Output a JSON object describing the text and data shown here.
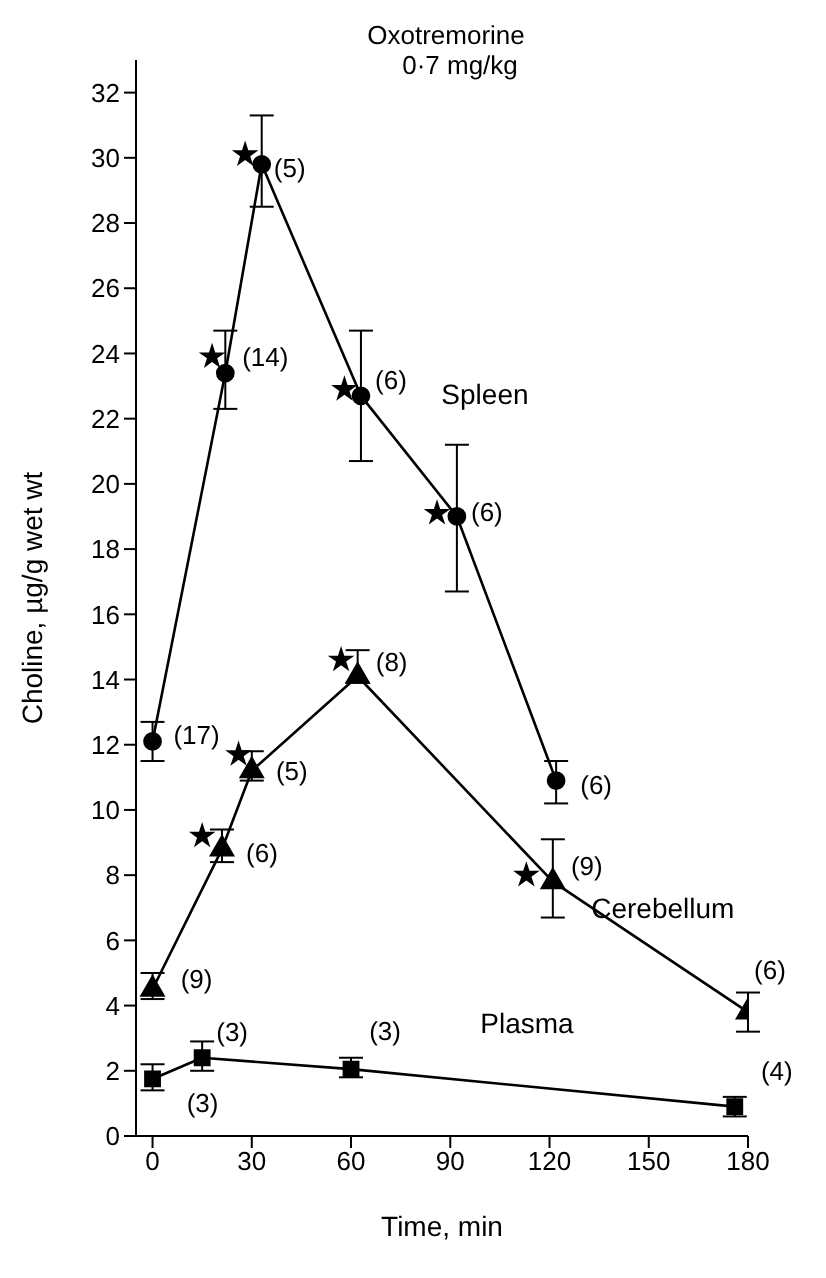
{
  "chart_data": {
    "type": "line",
    "title": "Oxotremorine",
    "subtitle": "0·7 mg/kg",
    "xlabel": "Time, min",
    "ylabel": "Choline, µg/g wet wt",
    "xlim": [
      -5,
      180
    ],
    "xticks": [
      0,
      30,
      60,
      90,
      120,
      150,
      180
    ],
    "ylim": [
      0,
      33
    ],
    "yticks": [
      0,
      2,
      4,
      6,
      8,
      10,
      12,
      14,
      16,
      18,
      20,
      22,
      24,
      26,
      28,
      30,
      32
    ],
    "grid": false,
    "legend": false,
    "line_style": "solid",
    "series": [
      {
        "name": "Spleen",
        "marker": "circle",
        "color": "#000000",
        "x": [
          0,
          22,
          33,
          63,
          92,
          122
        ],
        "values": [
          12.1,
          23.4,
          29.8,
          22.7,
          19.0,
          10.9
        ],
        "errors": [
          [
            11.5,
            12.7
          ],
          [
            22.3,
            24.7
          ],
          [
            28.5,
            31.3
          ],
          [
            20.7,
            24.7
          ],
          [
            16.7,
            21.2
          ],
          [
            10.2,
            11.5
          ]
        ]
      },
      {
        "name": "Cerebellum",
        "marker": "triangle",
        "color": "#000000",
        "x": [
          0,
          21,
          30,
          62,
          121,
          180
        ],
        "values": [
          4.5,
          8.8,
          11.2,
          14.1,
          7.8,
          3.8
        ],
        "errors": [
          [
            4.2,
            5.0
          ],
          [
            8.4,
            9.4
          ],
          [
            10.9,
            11.8
          ],
          [
            13.9,
            14.9
          ],
          [
            6.7,
            9.1
          ],
          [
            3.2,
            4.4
          ]
        ]
      },
      {
        "name": "Plasma",
        "marker": "square",
        "color": "#000000",
        "x": [
          0,
          15,
          60,
          176
        ],
        "values": [
          1.75,
          2.4,
          2.05,
          0.9
        ],
        "errors": [
          [
            1.4,
            2.2
          ],
          [
            2.0,
            2.9
          ],
          [
            1.8,
            2.4
          ],
          [
            0.6,
            1.2
          ]
        ]
      },
      {
        "type": "scatter",
        "marker": "star",
        "color": "#000000",
        "x": [
          28,
          18,
          58,
          86,
          57,
          26,
          15,
          113
        ],
        "values": [
          30.1,
          23.9,
          22.9,
          19.1,
          14.6,
          11.7,
          9.2,
          8.0
        ]
      }
    ],
    "annotations": [
      {
        "text": "(5)",
        "x": 33,
        "y": 29.8
      },
      {
        "text": "(14)",
        "x": 22,
        "y": 23.4
      },
      {
        "text": "(6)",
        "x": 63,
        "y": 22.7
      },
      {
        "text": "(6)",
        "x": 92,
        "y": 19.0
      },
      {
        "text": "(17)",
        "x": 0,
        "y": 12.1
      },
      {
        "text": "(6)",
        "x": 122,
        "y": 10.9
      },
      {
        "text": "(9)",
        "x": 0,
        "y": 4.5
      },
      {
        "text": "(6)",
        "x": 21,
        "y": 8.8
      },
      {
        "text": "(5)",
        "x": 30,
        "y": 11.2
      },
      {
        "text": "(8)",
        "x": 62,
        "y": 14.1
      },
      {
        "text": "(9)",
        "x": 121,
        "y": 7.8
      },
      {
        "text": "(6)",
        "x": 180,
        "y": 3.8
      },
      {
        "text": "(3)",
        "x": 15,
        "y": 2.4
      },
      {
        "text": "(3)",
        "x": 60,
        "y": 2.05
      },
      {
        "text": "(3)",
        "x": 0,
        "y": 1.75
      },
      {
        "text": "(4)",
        "x": 176,
        "y": 0.9
      }
    ]
  }
}
